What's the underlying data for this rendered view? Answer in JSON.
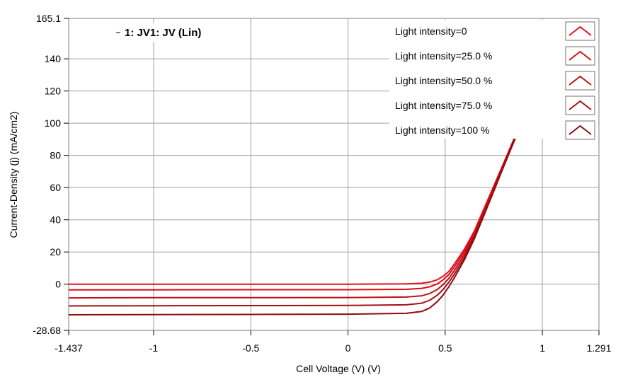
{
  "chart_data": {
    "type": "line",
    "title": "1: JV1: JV (Lin)",
    "xlabel": "Cell Voltage (V) (V)",
    "ylabel": "Current-Density (j) (mA/cm2)",
    "xlim": [
      -1.437,
      1.291
    ],
    "ylim": [
      -28.68,
      165.1
    ],
    "x_ticks": [
      -1.437,
      -1,
      -0.5,
      0,
      0.5,
      1,
      1.291
    ],
    "x_tick_labels": [
      "-1.437",
      "-1",
      "-0.5",
      "0",
      "0.5",
      "1",
      "1.291"
    ],
    "y_ticks": [
      -28.68,
      0,
      20,
      40,
      60,
      80,
      100,
      120,
      140,
      165.1
    ],
    "y_tick_labels": [
      "-28.68",
      "0",
      "20",
      "40",
      "60",
      "80",
      "100",
      "120",
      "140",
      "165.1"
    ],
    "grid": true,
    "legend_position": "top-right",
    "series": [
      {
        "name": "Light intensity=0",
        "color": "#e8101a",
        "x": [
          -1.437,
          -1.0,
          -0.5,
          0.0,
          0.3,
          0.38,
          0.42,
          0.46,
          0.49,
          0.52,
          0.55,
          0.6,
          0.65,
          0.7,
          0.75,
          0.8,
          0.86
        ],
        "y": [
          0,
          0,
          0,
          0,
          0.2,
          0.6,
          1.3,
          2.8,
          5.0,
          8.0,
          13.0,
          22.0,
          33.0,
          47.0,
          61.0,
          75.0,
          92.0
        ]
      },
      {
        "name": "Light intensity=25.0 %",
        "color": "#d90e18",
        "x": [
          -1.437,
          -1.0,
          -0.5,
          0.0,
          0.3,
          0.38,
          0.42,
          0.46,
          0.49,
          0.52,
          0.55,
          0.6,
          0.65,
          0.7,
          0.75,
          0.8,
          0.86
        ],
        "y": [
          -3.5,
          -3.5,
          -3.4,
          -3.4,
          -3.2,
          -2.6,
          -1.6,
          0.2,
          2.8,
          6.2,
          11.2,
          20.5,
          31.8,
          45.8,
          60.2,
          74.6,
          91.6
        ]
      },
      {
        "name": "Light intensity=50.0 %",
        "color": "#c20e16",
        "x": [
          -1.437,
          -1.0,
          -0.5,
          0.0,
          0.3,
          0.38,
          0.42,
          0.46,
          0.49,
          0.52,
          0.55,
          0.6,
          0.65,
          0.7,
          0.75,
          0.8,
          0.86
        ],
        "y": [
          -8.5,
          -8.4,
          -8.4,
          -8.3,
          -8.0,
          -7.2,
          -5.8,
          -3.3,
          -0.2,
          3.8,
          9.0,
          18.8,
          30.6,
          44.8,
          59.4,
          74.0,
          91.2
        ]
      },
      {
        "name": "Light intensity=75.0 %",
        "color": "#a40f14",
        "x": [
          -1.437,
          -1.0,
          -0.5,
          0.0,
          0.3,
          0.38,
          0.42,
          0.46,
          0.49,
          0.52,
          0.55,
          0.6,
          0.65,
          0.7,
          0.75,
          0.8,
          0.86
        ],
        "y": [
          -13.5,
          -13.4,
          -13.3,
          -13.2,
          -12.8,
          -11.8,
          -10.0,
          -6.8,
          -3.2,
          1.4,
          6.8,
          17.0,
          29.4,
          43.8,
          58.6,
          73.4,
          90.8
        ]
      },
      {
        "name": "Light intensity=100 %",
        "color": "#8a0d12",
        "x": [
          -1.437,
          -1.0,
          -0.5,
          0.0,
          0.3,
          0.38,
          0.42,
          0.46,
          0.49,
          0.52,
          0.55,
          0.6,
          0.65,
          0.7,
          0.75,
          0.8,
          0.86
        ],
        "y": [
          -19.0,
          -18.9,
          -18.8,
          -18.6,
          -18.1,
          -16.9,
          -14.8,
          -10.8,
          -6.6,
          -1.4,
          4.6,
          15.4,
          28.2,
          42.8,
          57.8,
          72.8,
          90.4
        ]
      }
    ]
  }
}
